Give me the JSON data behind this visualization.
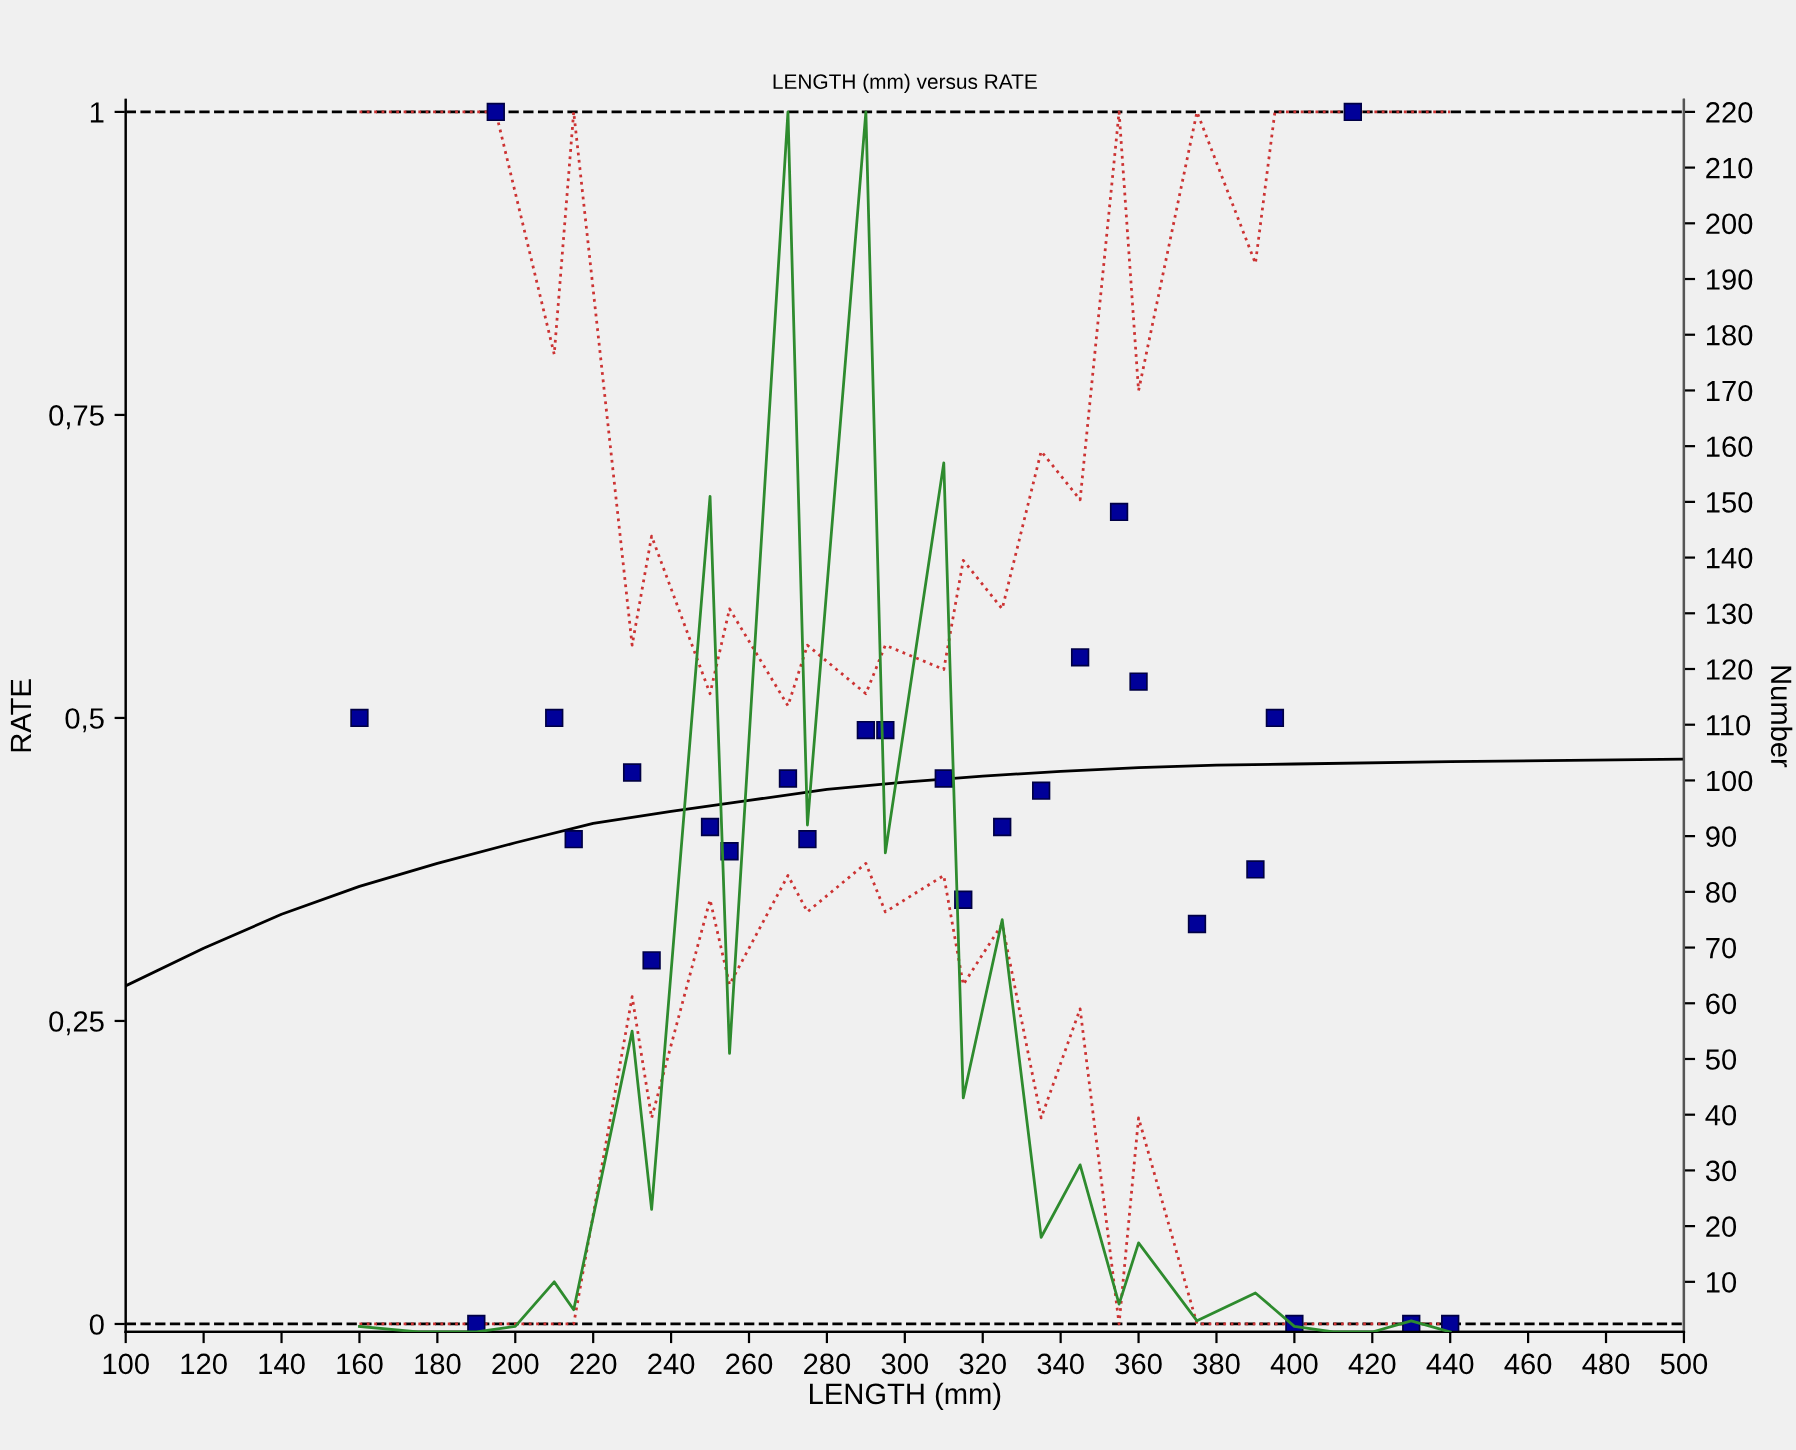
{
  "chart_data": {
    "type": "scatter",
    "title": "LENGTH (mm) versus RATE",
    "xlabel": "LENGTH (mm)",
    "ylabel": "RATE",
    "y2label": "Number",
    "xlim": [
      100,
      500
    ],
    "xticks": [
      100,
      120,
      140,
      160,
      180,
      200,
      220,
      240,
      260,
      280,
      300,
      320,
      340,
      360,
      380,
      400,
      420,
      440,
      460,
      480,
      500
    ],
    "ylim": [
      -0.0066,
      1.0099
    ],
    "yticks": [
      {
        "value": 0,
        "label": "0"
      },
      {
        "value": 0.25,
        "label": "0,25"
      },
      {
        "value": 0.5,
        "label": "0,5"
      },
      {
        "value": 0.75,
        "label": "0,75"
      },
      {
        "value": 1,
        "label": "1"
      }
    ],
    "y2lim": [
      1,
      222.15
    ],
    "y2ticks": [
      10,
      20,
      30,
      40,
      50,
      60,
      70,
      80,
      90,
      100,
      110,
      120,
      130,
      140,
      150,
      160,
      170,
      180,
      190,
      200,
      210,
      220
    ],
    "grid": false,
    "legend": false,
    "ref_lines": [
      {
        "axis": "y",
        "value": 0,
        "color": "#000000",
        "line_style": "dashed"
      },
      {
        "axis": "y",
        "value": 1,
        "color": "#000000",
        "line_style": "dashed"
      }
    ],
    "series": [
      {
        "type": "line",
        "axis": "y2",
        "color": "#2e8b2e",
        "line_style": "solid",
        "marker": "none",
        "x": [
          160,
          175,
          190,
          200,
          210,
          215,
          230,
          235,
          250,
          255,
          270,
          275,
          290,
          295,
          310,
          315,
          325,
          335,
          345,
          355,
          360,
          375,
          390,
          400,
          410,
          420,
          430,
          440
        ],
        "values": [
          2,
          1,
          1,
          2,
          10,
          5,
          55,
          23,
          151,
          51,
          220,
          92,
          220,
          87,
          157,
          43,
          75,
          18,
          31,
          6,
          17,
          3,
          8,
          2,
          1,
          1,
          3,
          1
        ]
      },
      {
        "type": "line",
        "color": "#cc3333",
        "line_style": "dotted",
        "marker": "none",
        "x": [
          160,
          195,
          210,
          215,
          230,
          235,
          250,
          255,
          270,
          275,
          290,
          295,
          310,
          315,
          325,
          335,
          345,
          355,
          360,
          375,
          390,
          395,
          440
        ],
        "values": [
          1,
          1,
          0.8,
          1,
          0.56,
          0.65,
          0.52,
          0.59,
          0.51,
          0.56,
          0.52,
          0.56,
          0.54,
          0.63,
          0.59,
          0.72,
          0.68,
          1,
          0.77,
          1,
          0.875,
          1,
          1
        ]
      },
      {
        "type": "line",
        "color": "#cc3333",
        "line_style": "dotted",
        "marker": "none",
        "x": [
          160,
          215,
          230,
          235,
          250,
          255,
          270,
          275,
          290,
          295,
          310,
          315,
          325,
          335,
          345,
          355,
          360,
          375,
          440
        ],
        "values": [
          0,
          0,
          0.27,
          0.17,
          0.35,
          0.28,
          0.37,
          0.34,
          0.38,
          0.34,
          0.37,
          0.28,
          0.33,
          0.17,
          0.26,
          0,
          0.17,
          0,
          0
        ]
      },
      {
        "type": "line",
        "color": "#000000",
        "line_style": "solid",
        "marker": "none",
        "x": [
          100,
          120,
          140,
          160,
          180,
          200,
          220,
          240,
          260,
          280,
          300,
          320,
          340,
          360,
          380,
          400,
          440,
          500
        ],
        "values": [
          0.279,
          0.31,
          0.338,
          0.361,
          0.38,
          0.397,
          0.413,
          0.423,
          0.432,
          0.441,
          0.447,
          0.452,
          0.456,
          0.459,
          0.461,
          0.462,
          0.464,
          0.466
        ]
      },
      {
        "color": "#000099",
        "marker": "square",
        "x": [
          160,
          190,
          195,
          210,
          215,
          230,
          235,
          250,
          255,
          270,
          275,
          290,
          295,
          310,
          315,
          325,
          335,
          345,
          355,
          360,
          375,
          390,
          395,
          400,
          415,
          430,
          440
        ],
        "values": [
          0.5,
          0,
          1,
          0.5,
          0.4,
          0.455,
          0.3,
          0.41,
          0.39,
          0.45,
          0.4,
          0.49,
          0.49,
          0.45,
          0.35,
          0.41,
          0.44,
          0.55,
          0.67,
          0.53,
          0.33,
          0.375,
          0.5,
          0,
          1,
          0,
          0
        ]
      }
    ]
  }
}
